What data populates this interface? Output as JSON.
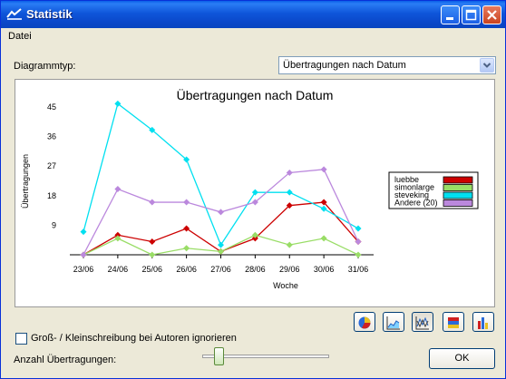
{
  "window": {
    "title": "Statistik"
  },
  "menu": {
    "items": [
      "Datei"
    ]
  },
  "toolbar": {
    "diagram_type_label": "Diagrammtyp:",
    "diagram_type_value": "Übertragungen nach Datum"
  },
  "chart_data": {
    "type": "line",
    "title": "Übertragungen nach Datum",
    "xlabel": "Woche",
    "ylabel": "Übertragungen",
    "categories": [
      "23/06",
      "24/06",
      "25/06",
      "26/06",
      "27/06",
      "28/06",
      "29/06",
      "30/06",
      "31/06"
    ],
    "yticks": [
      9,
      18,
      27,
      36,
      45
    ],
    "ylim": [
      0,
      45
    ],
    "series": [
      {
        "name": "luebbe",
        "color": "#cc0000",
        "marker": "diamond",
        "values": [
          0,
          6,
          4,
          8,
          1,
          5,
          15,
          16,
          4
        ]
      },
      {
        "name": "simonlarge",
        "color": "#99dd66",
        "marker": "diamond",
        "values": [
          0,
          5,
          0,
          2,
          1,
          6,
          3,
          5,
          0
        ]
      },
      {
        "name": "steveking",
        "color": "#00e0f0",
        "marker": "diamond",
        "values": [
          7,
          46,
          38,
          29,
          3,
          19,
          19,
          14,
          8
        ]
      },
      {
        "name": "Andere (20)",
        "color": "#bb88dd",
        "marker": "diamond",
        "values": [
          0,
          20,
          16,
          16,
          13,
          16,
          25,
          26,
          4
        ]
      }
    ],
    "legend_position": "right"
  },
  "chart_tools": [
    "pie-chart-icon",
    "area-chart-icon",
    "line-chart-icon",
    "stacked-bar-chart-icon",
    "bar-chart-icon"
  ],
  "options": {
    "ignore_case_label": "Groß- / Kleinschreibung bei Autoren ignorieren",
    "ignore_case_checked": false,
    "count_label": "Anzahl Übertragungen:",
    "slider_value": 0.1
  },
  "buttons": {
    "ok": "OK"
  }
}
